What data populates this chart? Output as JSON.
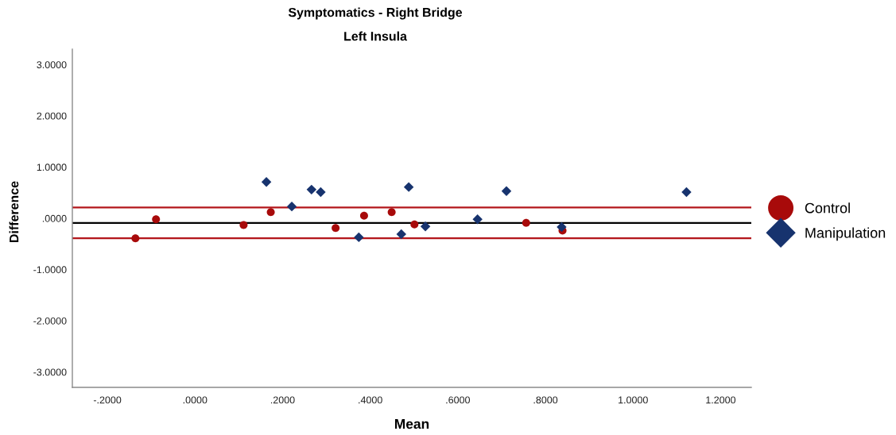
{
  "chart_data": {
    "type": "scatter",
    "title": "Symptomatics - Right Bridge",
    "subtitle": "Left Insula",
    "xlabel": "Mean",
    "ylabel": "Difference",
    "xlim": [
      -0.28,
      1.27
    ],
    "ylim": [
      -3.3,
      3.3
    ],
    "xticks": [
      {
        "value": -0.2,
        "label": "-.2000"
      },
      {
        "value": 0,
        "label": ".0000"
      },
      {
        "value": 0.2,
        "label": ".2000"
      },
      {
        "value": 0.4,
        "label": ".4000"
      },
      {
        "value": 0.6,
        "label": ".6000"
      },
      {
        "value": 0.8,
        "label": ".8000"
      },
      {
        "value": 1.0,
        "label": "1.0000"
      },
      {
        "value": 1.2,
        "label": "1.2000"
      }
    ],
    "yticks": [
      {
        "value": -3,
        "label": "-3.0000"
      },
      {
        "value": -2,
        "label": "-2.0000"
      },
      {
        "value": -1,
        "label": "-1.0000"
      },
      {
        "value": 0,
        "label": ".0000"
      },
      {
        "value": 1,
        "label": "1.0000"
      },
      {
        "value": 2,
        "label": "2.0000"
      },
      {
        "value": 3,
        "label": "3.0000"
      }
    ],
    "series": [
      {
        "name": "Control",
        "color": "#a80a0a",
        "marker": "circle",
        "x": [
          -0.136,
          -0.089,
          0.111,
          0.173,
          0.321,
          0.386,
          0.449,
          0.501,
          0.756,
          0.839
        ],
        "values": [
          -0.39,
          -0.02,
          -0.13,
          0.12,
          -0.19,
          0.05,
          0.12,
          -0.12,
          -0.09,
          -0.24
        ]
      },
      {
        "name": "Manipulation",
        "color": "#17336e",
        "marker": "diamond",
        "x": [
          0.163,
          0.221,
          0.266,
          0.287,
          0.374,
          0.471,
          0.488,
          0.526,
          0.645,
          0.711,
          0.837,
          1.122
        ],
        "values": [
          0.71,
          0.23,
          0.56,
          0.51,
          -0.37,
          -0.31,
          0.61,
          -0.16,
          -0.02,
          0.53,
          -0.17,
          0.51
        ]
      }
    ],
    "ref_lines": [
      {
        "axis": "y",
        "value": 0.21,
        "color": "#b3161b"
      },
      {
        "axis": "y",
        "value": -0.09,
        "color": "#000000"
      },
      {
        "axis": "y",
        "value": -0.39,
        "color": "#b3161b"
      }
    ],
    "legend": "right"
  }
}
